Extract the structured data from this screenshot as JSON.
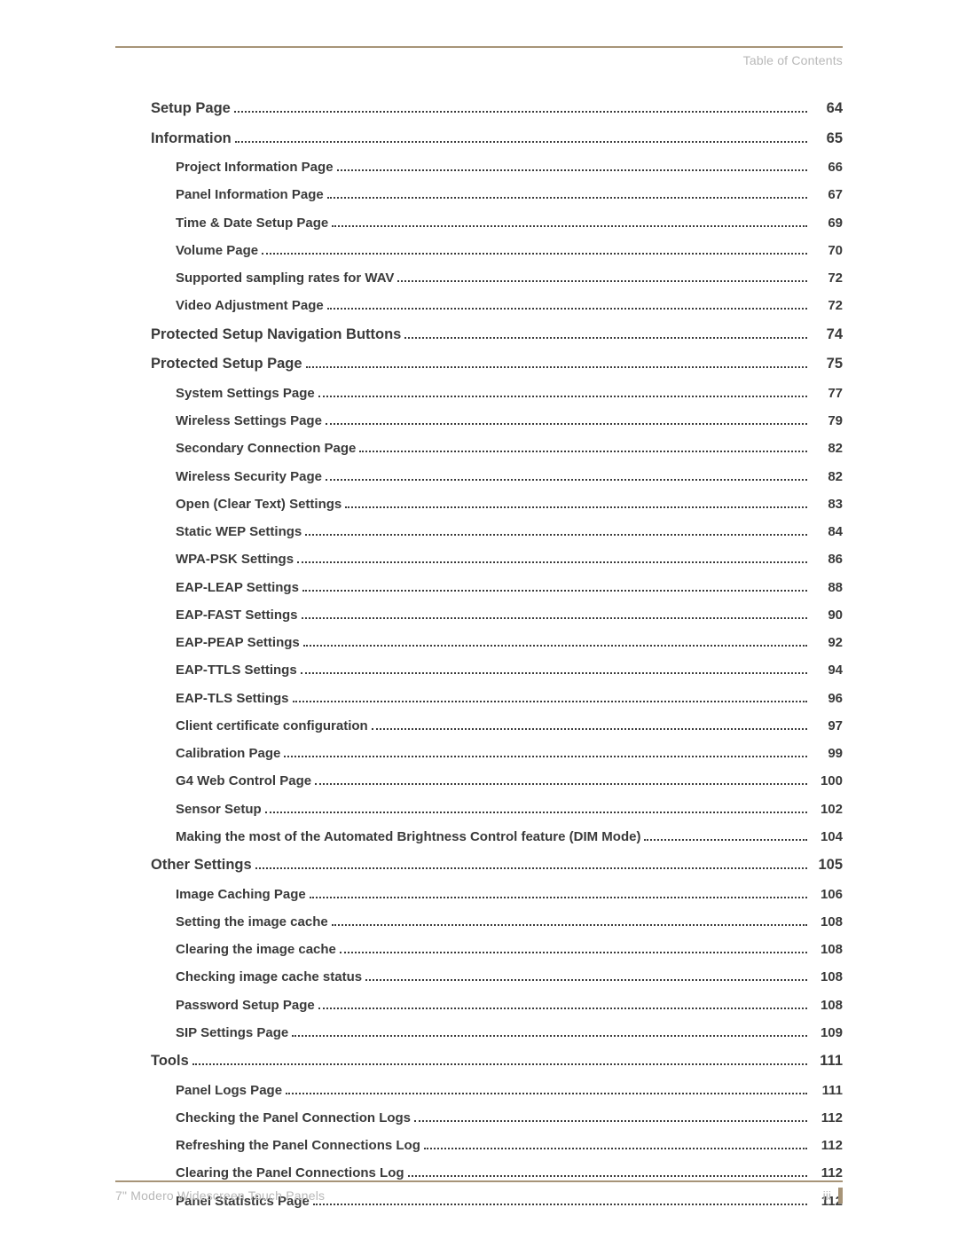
{
  "colors": {
    "rule": "#a79478",
    "muted_text": "#b8b8b8",
    "body_text": "#3a3a3a",
    "background": "#ffffff"
  },
  "typography": {
    "family": "Trebuchet MS",
    "level1_fontsize_pt": 12.5,
    "level2_fontsize_pt": 11.5,
    "weight": "bold"
  },
  "header": {
    "label": "Table of Contents"
  },
  "footer": {
    "left": "7\" Modero Widescreen Touch Panels",
    "page_number": "iii"
  },
  "toc": {
    "entries": [
      {
        "level": 1,
        "title": "Setup Page",
        "page": "64"
      },
      {
        "level": 1,
        "title": "Information",
        "page": "65"
      },
      {
        "level": 2,
        "title": "Project Information Page",
        "page": "66"
      },
      {
        "level": 2,
        "title": "Panel Information Page",
        "page": "67"
      },
      {
        "level": 2,
        "title": "Time & Date Setup Page",
        "page": "69"
      },
      {
        "level": 2,
        "title": "Volume Page",
        "page": "70"
      },
      {
        "level": 2,
        "title": "Supported sampling rates for WAV",
        "page": "72"
      },
      {
        "level": 2,
        "title": "Video Adjustment Page",
        "page": "72"
      },
      {
        "level": 1,
        "title": "Protected Setup Navigation Buttons",
        "page": "74"
      },
      {
        "level": 1,
        "title": "Protected Setup Page",
        "page": "75"
      },
      {
        "level": 2,
        "title": "System Settings Page",
        "page": "77"
      },
      {
        "level": 2,
        "title": "Wireless Settings Page",
        "page": "79"
      },
      {
        "level": 2,
        "title": "Secondary Connection Page",
        "page": "82"
      },
      {
        "level": 2,
        "title": "Wireless Security Page",
        "page": "82"
      },
      {
        "level": 2,
        "title": "Open (Clear Text) Settings",
        "page": "83"
      },
      {
        "level": 2,
        "title": "Static WEP Settings",
        "page": "84"
      },
      {
        "level": 2,
        "title": "WPA-PSK Settings",
        "page": "86"
      },
      {
        "level": 2,
        "title": "EAP-LEAP Settings",
        "page": "88"
      },
      {
        "level": 2,
        "title": "EAP-FAST Settings",
        "page": "90"
      },
      {
        "level": 2,
        "title": "EAP-PEAP Settings",
        "page": "92"
      },
      {
        "level": 2,
        "title": "EAP-TTLS Settings",
        "page": "94"
      },
      {
        "level": 2,
        "title": "EAP-TLS Settings",
        "page": "96"
      },
      {
        "level": 2,
        "title": "Client certificate configuration",
        "page": "97"
      },
      {
        "level": 2,
        "title": "Calibration Page",
        "page": "99"
      },
      {
        "level": 2,
        "title": "G4 Web Control Page",
        "page": "100"
      },
      {
        "level": 2,
        "title": "Sensor Setup",
        "page": "102"
      },
      {
        "level": 2,
        "title": "Making the most of the Automated Brightness Control feature (DIM Mode)",
        "page": "104"
      },
      {
        "level": 1,
        "title": "Other Settings",
        "page": "105"
      },
      {
        "level": 2,
        "title": "Image Caching Page",
        "page": "106"
      },
      {
        "level": 2,
        "title": "Setting the image cache",
        "page": "108"
      },
      {
        "level": 2,
        "title": "Clearing the image cache",
        "page": "108"
      },
      {
        "level": 2,
        "title": "Checking image cache status",
        "page": "108"
      },
      {
        "level": 2,
        "title": "Password Setup Page",
        "page": "108"
      },
      {
        "level": 2,
        "title": "SIP Settings Page",
        "page": "109"
      },
      {
        "level": 1,
        "title": "Tools",
        "page": "111"
      },
      {
        "level": 2,
        "title": "Panel Logs Page",
        "page": "111"
      },
      {
        "level": 2,
        "title": "Checking the Panel Connection Logs",
        "page": "112"
      },
      {
        "level": 2,
        "title": "Refreshing the Panel Connections Log",
        "page": "112"
      },
      {
        "level": 2,
        "title": "Clearing the Panel Connections Log",
        "page": "112"
      },
      {
        "level": 2,
        "title": "Panel Statistics Page",
        "page": "112"
      }
    ]
  }
}
